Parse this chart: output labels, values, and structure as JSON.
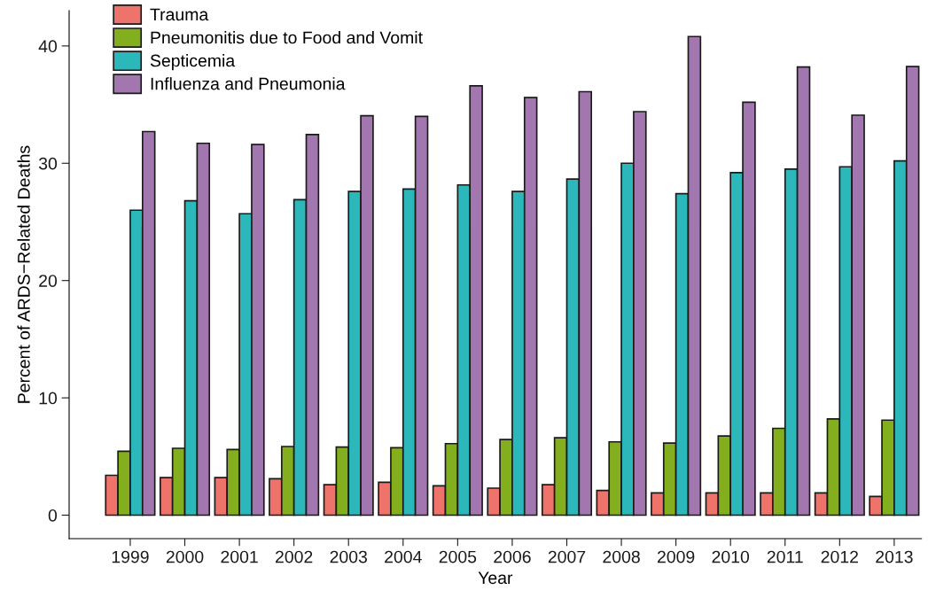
{
  "chart_data": {
    "type": "bar",
    "xlabel": "Year",
    "ylabel": "Percent of ARDS−Related Deaths",
    "categories": [
      "1999",
      "2000",
      "2001",
      "2002",
      "2003",
      "2004",
      "2005",
      "2006",
      "2007",
      "2008",
      "2009",
      "2010",
      "2011",
      "2012",
      "2013"
    ],
    "series": [
      {
        "name": "Trauma",
        "color": "#ee736b",
        "values": [
          3.4,
          3.2,
          3.2,
          3.1,
          2.6,
          2.8,
          2.5,
          2.3,
          2.6,
          2.1,
          1.9,
          1.9,
          1.9,
          1.9,
          1.6
        ]
      },
      {
        "name": "Pneumonitis due to Food and Vomit",
        "color": "#83ae1e",
        "values": [
          5.45,
          5.7,
          5.6,
          5.85,
          5.8,
          5.75,
          6.1,
          6.45,
          6.6,
          6.25,
          6.15,
          6.75,
          7.4,
          8.2,
          8.1
        ]
      },
      {
        "name": "Septicemia",
        "color": "#2cb7ba",
        "values": [
          26.0,
          26.8,
          25.7,
          26.9,
          27.6,
          27.8,
          28.15,
          27.6,
          28.65,
          30.0,
          27.4,
          29.2,
          29.5,
          29.7,
          30.2
        ]
      },
      {
        "name": "Influenza and Pneumonia",
        "color": "#a277b0",
        "values": [
          32.7,
          31.7,
          31.6,
          32.45,
          34.05,
          34.0,
          36.6,
          35.6,
          36.1,
          34.4,
          40.8,
          35.2,
          38.2,
          34.1,
          38.25
        ]
      }
    ],
    "ylim": [
      -2,
      43
    ],
    "yticks": [
      0,
      10,
      20,
      30,
      40
    ],
    "grid": false,
    "legend": "top left"
  }
}
